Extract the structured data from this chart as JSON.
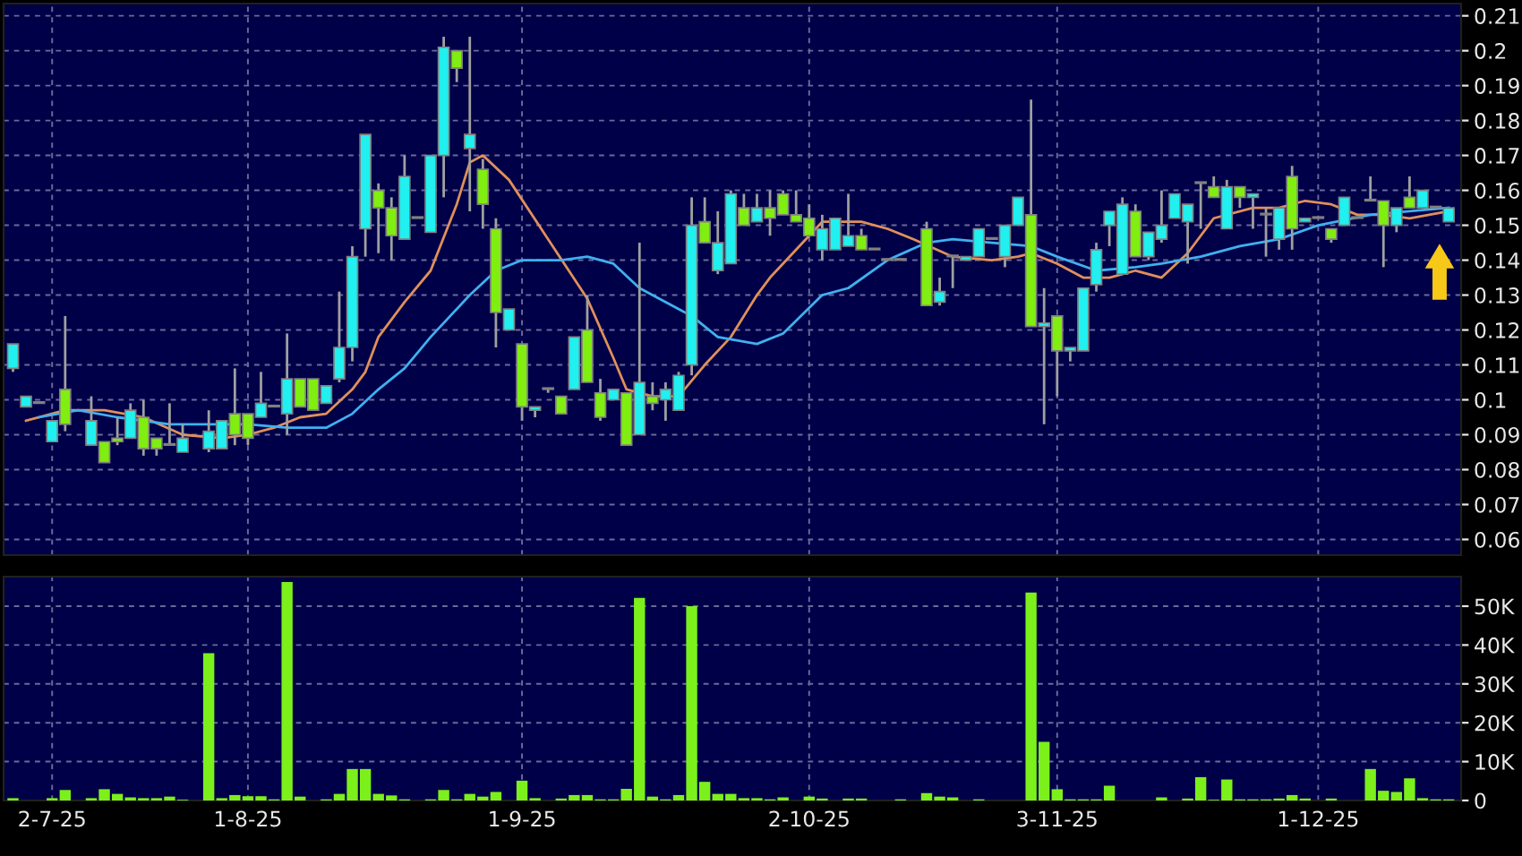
{
  "chart_data": [
    {
      "type": "candlestick",
      "categories": [
        null,
        null,
        null,
        null,
        null,
        null,
        null,
        null,
        null,
        null,
        null,
        null,
        null,
        null,
        null,
        null,
        null,
        null,
        null,
        null,
        null,
        null,
        null,
        null,
        null,
        null,
        null,
        null,
        null,
        null,
        null,
        null,
        null,
        null,
        null,
        null,
        null,
        null,
        null,
        null,
        null,
        null,
        null,
        null,
        null,
        null,
        null,
        null,
        null,
        null,
        null,
        null,
        null,
        null,
        null,
        null,
        null,
        null,
        null,
        null,
        null,
        null,
        null,
        null,
        null,
        null,
        null,
        null,
        null,
        null,
        null,
        null,
        null,
        null,
        null,
        null,
        null,
        null,
        null,
        null,
        null,
        null,
        null,
        null,
        null,
        null,
        null,
        null,
        null,
        null,
        null,
        null,
        null,
        null,
        null,
        null,
        null,
        null,
        null,
        null,
        null,
        null,
        null,
        null,
        null,
        null,
        null,
        null,
        null,
        null,
        null
      ],
      "ohlc": [
        [
          0.109,
          0.116,
          0.108,
          0.116
        ],
        [
          0.098,
          0.101,
          0.098,
          0.101
        ],
        [
          0.099,
          0.099,
          0.099,
          0.099
        ],
        [
          0.088,
          0.094,
          0.088,
          0.094
        ],
        [
          0.103,
          0.124,
          0.091,
          0.093
        ],
        null,
        [
          0.087,
          0.101,
          0.087,
          0.094
        ],
        [
          0.088,
          0.088,
          0.082,
          0.082
        ],
        [
          0.089,
          0.095,
          0.087,
          0.088
        ],
        [
          0.089,
          0.099,
          0.089,
          0.097
        ],
        [
          0.095,
          0.1,
          0.084,
          0.086
        ],
        [
          0.089,
          0.089,
          0.084,
          0.086
        ],
        [
          0.087,
          0.099,
          0.087,
          0.087
        ],
        [
          0.085,
          0.093,
          0.085,
          0.089
        ],
        null,
        [
          0.086,
          0.097,
          0.085,
          0.091
        ],
        [
          0.086,
          0.094,
          0.086,
          0.094
        ],
        [
          0.096,
          0.109,
          0.087,
          0.09
        ],
        [
          0.096,
          0.096,
          0.087,
          0.089
        ],
        [
          0.095,
          0.108,
          0.095,
          0.099
        ],
        [
          0.098,
          0.098,
          0.098,
          0.098
        ],
        [
          0.096,
          0.119,
          0.09,
          0.106
        ],
        [
          0.106,
          0.106,
          0.098,
          0.098
        ],
        [
          0.106,
          0.106,
          0.097,
          0.097
        ],
        [
          0.099,
          0.104,
          0.099,
          0.104
        ],
        [
          0.106,
          0.131,
          0.105,
          0.115
        ],
        [
          0.115,
          0.144,
          0.111,
          0.141
        ],
        [
          0.149,
          0.176,
          0.141,
          0.176
        ],
        [
          0.16,
          0.162,
          0.142,
          0.155
        ],
        [
          0.155,
          0.158,
          0.14,
          0.147
        ],
        [
          0.146,
          0.17,
          0.146,
          0.164
        ],
        [
          0.152,
          0.152,
          0.152,
          0.152
        ],
        [
          0.148,
          0.17,
          0.148,
          0.17
        ],
        [
          0.17,
          0.204,
          0.158,
          0.201
        ],
        [
          0.2,
          0.2,
          0.191,
          0.195
        ],
        [
          0.172,
          0.204,
          0.154,
          0.176
        ],
        [
          0.166,
          0.169,
          0.149,
          0.156
        ],
        [
          0.149,
          0.152,
          0.115,
          0.125
        ],
        [
          0.12,
          0.126,
          0.12,
          0.126
        ],
        [
          0.116,
          0.116,
          0.094,
          0.098
        ],
        [
          0.097,
          0.098,
          0.095,
          0.098
        ],
        [
          0.103,
          0.103,
          0.102,
          0.103
        ],
        [
          0.101,
          0.101,
          0.096,
          0.096
        ],
        [
          0.103,
          0.118,
          0.103,
          0.118
        ],
        [
          0.12,
          0.13,
          0.105,
          0.105
        ],
        [
          0.102,
          0.106,
          0.094,
          0.095
        ],
        [
          0.1,
          0.103,
          0.1,
          0.103
        ],
        [
          0.102,
          0.102,
          0.087,
          0.087
        ],
        [
          0.09,
          0.145,
          0.09,
          0.105
        ],
        [
          0.101,
          0.105,
          0.097,
          0.099
        ],
        [
          0.1,
          0.105,
          0.094,
          0.103
        ],
        [
          0.097,
          0.108,
          0.097,
          0.107
        ],
        [
          0.11,
          0.158,
          0.107,
          0.15
        ],
        [
          0.151,
          0.158,
          0.145,
          0.145
        ],
        [
          0.137,
          0.154,
          0.136,
          0.145
        ],
        [
          0.139,
          0.16,
          0.139,
          0.159
        ],
        [
          0.155,
          0.159,
          0.15,
          0.15
        ],
        [
          0.151,
          0.159,
          0.151,
          0.155
        ],
        [
          0.155,
          0.16,
          0.147,
          0.152
        ],
        [
          0.159,
          0.16,
          0.153,
          0.153
        ],
        [
          0.153,
          0.16,
          0.151,
          0.151
        ],
        [
          0.152,
          0.156,
          0.147,
          0.147
        ],
        [
          0.143,
          0.153,
          0.14,
          0.149
        ],
        [
          0.143,
          0.152,
          0.143,
          0.152
        ],
        [
          0.144,
          0.159,
          0.144,
          0.147
        ],
        [
          0.147,
          0.149,
          0.143,
          0.143
        ],
        [
          0.143,
          0.143,
          0.143,
          0.143
        ],
        [
          0.14,
          0.14,
          0.14,
          0.14
        ],
        [
          0.14,
          0.14,
          0.14,
          0.14
        ],
        null,
        [
          0.149,
          0.151,
          0.127,
          0.127
        ],
        [
          0.128,
          0.135,
          0.127,
          0.131
        ],
        [
          0.141,
          0.141,
          0.132,
          0.141
        ],
        [
          0.14,
          0.141,
          0.14,
          0.141
        ],
        [
          0.141,
          0.149,
          0.141,
          0.149
        ],
        [
          0.146,
          0.146,
          0.146,
          0.146
        ],
        [
          0.141,
          0.15,
          0.138,
          0.15
        ],
        [
          0.15,
          0.158,
          0.15,
          0.158
        ],
        [
          0.153,
          0.186,
          0.121,
          0.121
        ],
        [
          0.121,
          0.132,
          0.093,
          0.122
        ],
        [
          0.124,
          0.124,
          0.101,
          0.114
        ],
        [
          0.114,
          0.115,
          0.111,
          0.115
        ],
        [
          0.114,
          0.132,
          0.114,
          0.132
        ],
        [
          0.133,
          0.145,
          0.131,
          0.143
        ],
        [
          0.15,
          0.154,
          0.144,
          0.154
        ],
        [
          0.136,
          0.158,
          0.136,
          0.156
        ],
        [
          0.154,
          0.156,
          0.141,
          0.141
        ],
        [
          0.141,
          0.148,
          0.14,
          0.148
        ],
        [
          0.146,
          0.16,
          0.145,
          0.15
        ],
        [
          0.152,
          0.159,
          0.152,
          0.159
        ],
        [
          0.151,
          0.156,
          0.139,
          0.156
        ],
        [
          0.162,
          0.162,
          0.149,
          0.162
        ],
        [
          0.161,
          0.164,
          0.158,
          0.158
        ],
        [
          0.149,
          0.163,
          0.149,
          0.161
        ],
        [
          0.161,
          0.161,
          0.155,
          0.158
        ],
        [
          0.158,
          0.159,
          0.149,
          0.159
        ],
        [
          0.153,
          0.155,
          0.141,
          0.153
        ],
        [
          0.146,
          0.155,
          0.143,
          0.155
        ],
        [
          0.164,
          0.167,
          0.143,
          0.149
        ],
        [
          0.151,
          0.152,
          0.151,
          0.152
        ],
        [
          0.152,
          0.152,
          0.152,
          0.152
        ],
        [
          0.149,
          0.149,
          0.145,
          0.146
        ],
        [
          0.15,
          0.158,
          0.15,
          0.158
        ],
        [
          0.152,
          0.152,
          0.152,
          0.152
        ],
        [
          0.157,
          0.164,
          0.157,
          0.157
        ],
        [
          0.157,
          0.157,
          0.138,
          0.15
        ],
        [
          0.15,
          0.155,
          0.148,
          0.155
        ],
        [
          0.158,
          0.164,
          0.155,
          0.155
        ],
        [
          0.155,
          0.16,
          0.155,
          0.16
        ],
        [
          0.155,
          0.155,
          0.155,
          0.155
        ],
        [
          0.151,
          0.155,
          0.151,
          0.155
        ]
      ],
      "colors": [
        "#20f0f0",
        "#20f0f0",
        "#a0a0a0",
        "#20f0f0",
        "#80ee10",
        null,
        "#20f0f0",
        "#80ee10",
        "#80ee10",
        "#20f0f0",
        "#80ee10",
        "#80ee10",
        "#a0a0a0",
        "#20f0f0",
        null,
        "#20f0f0",
        "#20f0f0",
        "#80ee10",
        "#80ee10",
        "#20f0f0",
        "#a0a0a0",
        "#20f0f0",
        "#80ee10",
        "#80ee10",
        "#20f0f0",
        "#20f0f0",
        "#20f0f0",
        "#20f0f0",
        "#80ee10",
        "#80ee10",
        "#20f0f0",
        "#a0a0a0",
        "#20f0f0",
        "#20f0f0",
        "#80ee10",
        "#20f0f0",
        "#80ee10",
        "#80ee10",
        "#20f0f0",
        "#80ee10",
        "#20f0f0",
        "#80ee10",
        "#80ee10",
        "#20f0f0",
        "#80ee10",
        "#80ee10",
        "#20f0f0",
        "#80ee10",
        "#20f0f0",
        "#80ee10",
        "#20f0f0",
        "#20f0f0",
        "#20f0f0",
        "#80ee10",
        "#20f0f0",
        "#20f0f0",
        "#80ee10",
        "#20f0f0",
        "#80ee10",
        "#80ee10",
        "#80ee10",
        "#80ee10",
        "#20f0f0",
        "#20f0f0",
        "#20f0f0",
        "#80ee10",
        "#a0a0a0",
        "#80ee10",
        "#a0a0a0",
        null,
        "#80ee10",
        "#20f0f0",
        "#a0a0a0",
        "#20f0f0",
        "#20f0f0",
        "#80ee10",
        "#20f0f0",
        "#20f0f0",
        "#80ee10",
        "#20f0f0",
        "#80ee10",
        "#20f0f0",
        "#20f0f0",
        "#20f0f0",
        "#20f0f0",
        "#20f0f0",
        "#80ee10",
        "#20f0f0",
        "#20f0f0",
        "#20f0f0",
        "#20f0f0",
        "#80ee10",
        "#80ee10",
        "#20f0f0",
        "#80ee10",
        "#20f0f0",
        "#a0a0a0",
        "#20f0f0",
        "#80ee10",
        "#20f0f0",
        "#a0a0a0",
        "#80ee10",
        "#20f0f0",
        "#a0a0a0",
        "#a0a0a0",
        "#80ee10",
        "#20f0f0",
        "#80ee10",
        "#20f0f0",
        "#a0a0a0",
        "#20f0f0"
      ],
      "series": [
        {
          "type": "line",
          "color": "#e0905a",
          "values": [
            null,
            0.094,
            null,
            null,
            0.097,
            null,
            null,
            0.097,
            null,
            null,
            0.095,
            null,
            null,
            0.09,
            null,
            null,
            0.089,
            null,
            0.09,
            null,
            0.092,
            null,
            0.095,
            null,
            0.096,
            null,
            0.103,
            0.108,
            0.118,
            null,
            0.128,
            null,
            0.137,
            null,
            0.156,
            0.168,
            0.17,
            null,
            0.163,
            null,
            null,
            0.146,
            null,
            null,
            0.129,
            null,
            0.112,
            0.103,
            null,
            0.101,
            null,
            0.101,
            null,
            0.11,
            null,
            0.118,
            null,
            0.13,
            0.135,
            null,
            null,
            0.147,
            0.151,
            null,
            null,
            0.151,
            null,
            0.149,
            null,
            0.146,
            null,
            null,
            0.141,
            null,
            null,
            0.14,
            null,
            0.141,
            0.142,
            null,
            0.139,
            null,
            0.135,
            null,
            0.135,
            null,
            0.137,
            null,
            0.135,
            null,
            0.142,
            null,
            0.152,
            null,
            null,
            0.155,
            null,
            0.155,
            null,
            0.157,
            null,
            0.156,
            null,
            0.153,
            null,
            0.153,
            null,
            0.152,
            null,
            null,
            0.154
          ]
        },
        {
          "type": "line",
          "color": "#40b0f0",
          "values": [
            null,
            null,
            0.095,
            null,
            null,
            0.097,
            null,
            null,
            0.095,
            null,
            null,
            null,
            0.093,
            null,
            null,
            0.093,
            null,
            null,
            0.093,
            null,
            null,
            0.092,
            null,
            null,
            0.092,
            null,
            0.096,
            null,
            0.103,
            null,
            0.109,
            null,
            0.118,
            null,
            null,
            0.13,
            null,
            0.137,
            null,
            0.14,
            null,
            null,
            0.14,
            null,
            0.141,
            null,
            0.139,
            null,
            0.132,
            null,
            null,
            null,
            0.124,
            null,
            0.118,
            null,
            null,
            0.116,
            null,
            0.119,
            null,
            null,
            0.13,
            null,
            0.132,
            null,
            null,
            0.14,
            null,
            null,
            0.145,
            null,
            0.146,
            null,
            null,
            0.145,
            null,
            null,
            0.144,
            null,
            0.141,
            null,
            null,
            0.137,
            null,
            null,
            0.138,
            null,
            0.139,
            null,
            null,
            0.141,
            null,
            null,
            0.144,
            null,
            null,
            0.146,
            null,
            null,
            0.15,
            null,
            null,
            null,
            0.153,
            null,
            null,
            0.154,
            null,
            null,
            0.155
          ]
        }
      ],
      "ylim": [
        0.0555,
        0.2135
      ],
      "yticks": [
        0.06,
        0.07,
        0.08,
        0.09,
        0.1,
        0.11,
        0.12,
        0.13,
        0.14,
        0.15,
        0.16,
        0.17,
        0.18,
        0.19,
        0.2,
        0.21
      ],
      "grid": true,
      "tick_labels": "y"
    },
    {
      "type": "bar",
      "categories": [
        null,
        null,
        null,
        "2-7-25",
        null,
        null,
        null,
        null,
        null,
        null,
        null,
        null,
        null,
        null,
        null,
        null,
        null,
        null,
        "1-8-25",
        null,
        null,
        null,
        null,
        null,
        null,
        null,
        null,
        null,
        null,
        null,
        null,
        null,
        null,
        null,
        null,
        null,
        null,
        null,
        null,
        "1-9-25",
        null,
        null,
        null,
        null,
        null,
        null,
        null,
        null,
        null,
        null,
        null,
        null,
        null,
        null,
        null,
        null,
        null,
        null,
        null,
        null,
        null,
        "2-10-25",
        null,
        null,
        null,
        null,
        null,
        null,
        null,
        null,
        null,
        null,
        null,
        null,
        null,
        null,
        null,
        null,
        null,
        null,
        "3-11-25",
        null,
        null,
        null,
        null,
        null,
        null,
        null,
        null,
        null,
        null,
        null,
        null,
        null,
        null,
        null,
        null,
        null,
        null,
        null,
        "1-12-25",
        null,
        null,
        null,
        null,
        null,
        null,
        null,
        null,
        null,
        null
      ],
      "values": [
        600,
        0,
        0,
        600,
        2700,
        null,
        600,
        2900,
        1700,
        800,
        600,
        600,
        1000,
        200,
        null,
        37900,
        600,
        1400,
        1100,
        1100,
        300,
        56200,
        1000,
        null,
        300,
        1700,
        8100,
        8100,
        1700,
        1300,
        300,
        null,
        300,
        2700,
        300,
        1700,
        1000,
        2200,
        0,
        5100,
        600,
        null,
        500,
        1400,
        1400,
        300,
        300,
        3000,
        52100,
        1000,
        300,
        1400,
        50000,
        4800,
        1700,
        1700,
        600,
        600,
        300,
        800,
        0,
        1000,
        500,
        0,
        500,
        500,
        0,
        0,
        300,
        null,
        1900,
        1000,
        800,
        0,
        300,
        null,
        null,
        0,
        53500,
        15100,
        2900,
        300,
        300,
        300,
        3800,
        0,
        0,
        0,
        800,
        0,
        500,
        6000,
        200,
        5400,
        300,
        300,
        300,
        500,
        1400,
        500,
        0,
        500,
        0,
        0,
        8100,
        2500,
        2200,
        5700,
        600,
        300,
        300
      ],
      "color": "#7cf01a",
      "ylim": [
        0,
        57600
      ],
      "yticks": [
        0,
        {
          "value": 10000,
          "label": "10K"
        },
        {
          "value": 20000,
          "label": "20K"
        },
        {
          "value": 30000,
          "label": "30K"
        },
        {
          "value": 40000,
          "label": "40K"
        },
        {
          "value": 50000,
          "label": "50K"
        }
      ],
      "grid": true
    }
  ]
}
